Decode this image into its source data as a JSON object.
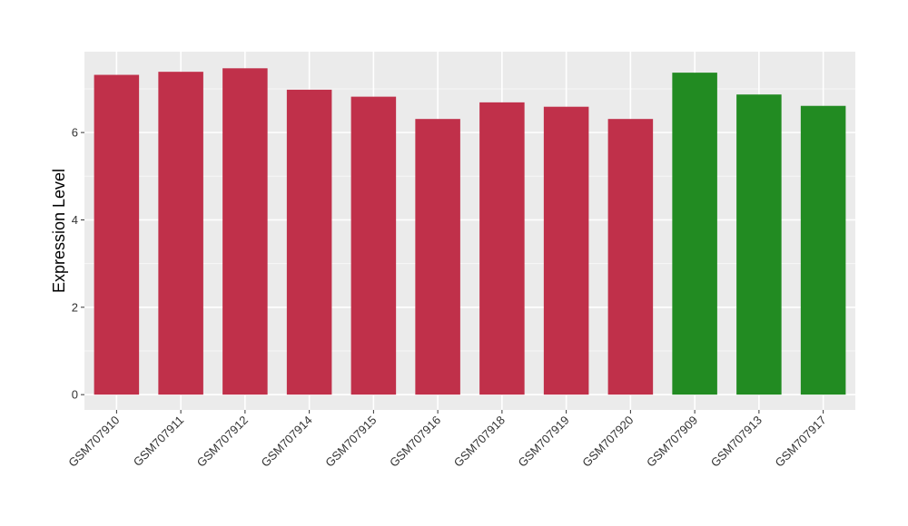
{
  "chart_data": {
    "type": "bar",
    "title": "",
    "xlabel": "",
    "ylabel": "Expression Level",
    "categories": [
      "GSM707910",
      "GSM707911",
      "GSM707912",
      "GSM707914",
      "GSM707915",
      "GSM707916",
      "GSM707918",
      "GSM707919",
      "GSM707920",
      "GSM707909",
      "GSM707913",
      "GSM707917"
    ],
    "values": [
      7.32,
      7.39,
      7.47,
      6.98,
      6.82,
      6.31,
      6.69,
      6.59,
      6.31,
      7.37,
      6.87,
      6.61
    ],
    "bar_colors": [
      "#c0304a",
      "#c0304a",
      "#c0304a",
      "#c0304a",
      "#c0304a",
      "#c0304a",
      "#c0304a",
      "#c0304a",
      "#c0304a",
      "#228b22",
      "#228b22",
      "#228b22"
    ],
    "ylim": [
      -0.35,
      7.85
    ],
    "yticks": [
      0,
      2,
      4,
      6
    ],
    "grid": true,
    "legend": "none",
    "panel_background": "#ebebeb"
  }
}
